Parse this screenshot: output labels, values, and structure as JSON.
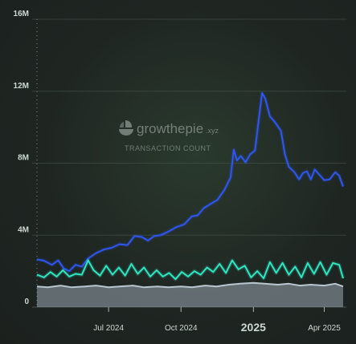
{
  "watermark": {
    "brand": "growthepie",
    "brand_suffix": ".xyz",
    "subtitle": "TRANSACTION COUNT"
  },
  "colors": {
    "background": "#1e2321",
    "grid": "#4a5a52",
    "series_blue": "#2f56f0",
    "series_teal": "#2ee6c0",
    "series_gray": "#b8c6d0",
    "gray_fill": "#9aa7b3"
  },
  "chart_data": {
    "type": "area",
    "title": "",
    "xlabel": "",
    "ylabel": "",
    "y_ticks": [
      "0",
      "4M",
      "8M",
      "12M",
      "16M"
    ],
    "y_tick_values": [
      0,
      4000000,
      8000000,
      12000000,
      16000000
    ],
    "ylim": [
      0,
      16000000
    ],
    "x_ticks": [
      {
        "label": "Jul 2024",
        "date": "2024-07-01",
        "emphasis": false
      },
      {
        "label": "Oct 2024",
        "date": "2024-10-01",
        "emphasis": false
      },
      {
        "label": "2025",
        "date": "2025-01-01",
        "emphasis": true
      },
      {
        "label": "Apr 2025",
        "date": "2025-04-01",
        "emphasis": false
      }
    ],
    "xlim": [
      "2024-04-01",
      "2025-04-25"
    ],
    "grid": true,
    "legend": "none",
    "series": [
      {
        "color": "#2f56f0",
        "style": "line",
        "points": [
          [
            "2024-04-01",
            2650000
          ],
          [
            "2024-04-10",
            2580000
          ],
          [
            "2024-04-20",
            2350000
          ],
          [
            "2024-04-28",
            2600000
          ],
          [
            "2024-05-05",
            2150000
          ],
          [
            "2024-05-12",
            2000000
          ],
          [
            "2024-05-20",
            2350000
          ],
          [
            "2024-05-28",
            2250000
          ],
          [
            "2024-06-05",
            2700000
          ],
          [
            "2024-06-15",
            3000000
          ],
          [
            "2024-06-25",
            3200000
          ],
          [
            "2024-07-05",
            3300000
          ],
          [
            "2024-07-15",
            3500000
          ],
          [
            "2024-07-25",
            3450000
          ],
          [
            "2024-08-03",
            3950000
          ],
          [
            "2024-08-12",
            3900000
          ],
          [
            "2024-08-20",
            3700000
          ],
          [
            "2024-08-28",
            3950000
          ],
          [
            "2024-09-05",
            4000000
          ],
          [
            "2024-09-15",
            4200000
          ],
          [
            "2024-09-25",
            4450000
          ],
          [
            "2024-10-05",
            4600000
          ],
          [
            "2024-10-15",
            5050000
          ],
          [
            "2024-10-22",
            5100000
          ],
          [
            "2024-10-30",
            5500000
          ],
          [
            "2024-11-08",
            5750000
          ],
          [
            "2024-11-16",
            5950000
          ],
          [
            "2024-11-25",
            6500000
          ],
          [
            "2024-12-03",
            7200000
          ],
          [
            "2024-12-07",
            8750000
          ],
          [
            "2024-12-11",
            8150000
          ],
          [
            "2024-12-16",
            8400000
          ],
          [
            "2024-12-22",
            8050000
          ],
          [
            "2024-12-28",
            8500000
          ],
          [
            "2025-01-03",
            8700000
          ],
          [
            "2025-01-08",
            10500000
          ],
          [
            "2025-01-12",
            11900000
          ],
          [
            "2025-01-16",
            11600000
          ],
          [
            "2025-01-22",
            10600000
          ],
          [
            "2025-01-28",
            10300000
          ],
          [
            "2025-02-05",
            9800000
          ],
          [
            "2025-02-10",
            8500000
          ],
          [
            "2025-02-15",
            7800000
          ],
          [
            "2025-02-22",
            7500000
          ],
          [
            "2025-02-28",
            7100000
          ],
          [
            "2025-03-05",
            7450000
          ],
          [
            "2025-03-10",
            7550000
          ],
          [
            "2025-03-15",
            7100000
          ],
          [
            "2025-03-20",
            7650000
          ],
          [
            "2025-03-26",
            7350000
          ],
          [
            "2025-04-01",
            7050000
          ],
          [
            "2025-04-08",
            7100000
          ],
          [
            "2025-04-15",
            7500000
          ],
          [
            "2025-04-20",
            7300000
          ],
          [
            "2025-04-25",
            6700000
          ]
        ]
      },
      {
        "color": "#2ee6c0",
        "style": "line",
        "points": [
          [
            "2024-04-01",
            1800000
          ],
          [
            "2024-04-10",
            1650000
          ],
          [
            "2024-04-18",
            1950000
          ],
          [
            "2024-04-26",
            1700000
          ],
          [
            "2024-05-04",
            2050000
          ],
          [
            "2024-05-12",
            1700000
          ],
          [
            "2024-05-20",
            1850000
          ],
          [
            "2024-05-28",
            1800000
          ],
          [
            "2024-06-05",
            2600000
          ],
          [
            "2024-06-12",
            2050000
          ],
          [
            "2024-06-20",
            1750000
          ],
          [
            "2024-06-28",
            2300000
          ],
          [
            "2024-07-06",
            1800000
          ],
          [
            "2024-07-14",
            2200000
          ],
          [
            "2024-07-22",
            1750000
          ],
          [
            "2024-07-30",
            2400000
          ],
          [
            "2024-08-07",
            1850000
          ],
          [
            "2024-08-15",
            2200000
          ],
          [
            "2024-08-23",
            1700000
          ],
          [
            "2024-08-31",
            2050000
          ],
          [
            "2024-09-08",
            1700000
          ],
          [
            "2024-09-16",
            1900000
          ],
          [
            "2024-09-24",
            1550000
          ],
          [
            "2024-10-02",
            1950000
          ],
          [
            "2024-10-10",
            1700000
          ],
          [
            "2024-10-18",
            2000000
          ],
          [
            "2024-10-26",
            1800000
          ],
          [
            "2024-11-03",
            2200000
          ],
          [
            "2024-11-11",
            1950000
          ],
          [
            "2024-11-19",
            2400000
          ],
          [
            "2024-11-27",
            1900000
          ],
          [
            "2024-12-05",
            2600000
          ],
          [
            "2024-12-13",
            2100000
          ],
          [
            "2024-12-21",
            2300000
          ],
          [
            "2024-12-29",
            1650000
          ],
          [
            "2025-01-06",
            2000000
          ],
          [
            "2025-01-14",
            1600000
          ],
          [
            "2025-01-22",
            2500000
          ],
          [
            "2025-01-30",
            1900000
          ],
          [
            "2025-02-07",
            2450000
          ],
          [
            "2025-02-15",
            1800000
          ],
          [
            "2025-02-23",
            2250000
          ],
          [
            "2025-03-03",
            1650000
          ],
          [
            "2025-03-11",
            2450000
          ],
          [
            "2025-03-19",
            1850000
          ],
          [
            "2025-03-27",
            2500000
          ],
          [
            "2025-04-04",
            1800000
          ],
          [
            "2025-04-12",
            2450000
          ],
          [
            "2025-04-20",
            2350000
          ],
          [
            "2025-04-25",
            1600000
          ]
        ]
      },
      {
        "color": "#b8c6d0",
        "style": "area",
        "points": [
          [
            "2024-04-01",
            1150000
          ],
          [
            "2024-04-15",
            1100000
          ],
          [
            "2024-05-01",
            1200000
          ],
          [
            "2024-05-15",
            1100000
          ],
          [
            "2024-06-01",
            1150000
          ],
          [
            "2024-06-15",
            1200000
          ],
          [
            "2024-07-01",
            1100000
          ],
          [
            "2024-07-15",
            1150000
          ],
          [
            "2024-08-01",
            1200000
          ],
          [
            "2024-08-15",
            1100000
          ],
          [
            "2024-09-01",
            1150000
          ],
          [
            "2024-09-15",
            1100000
          ],
          [
            "2024-10-01",
            1150000
          ],
          [
            "2024-10-15",
            1100000
          ],
          [
            "2024-11-01",
            1200000
          ],
          [
            "2024-11-15",
            1150000
          ],
          [
            "2024-12-01",
            1250000
          ],
          [
            "2024-12-15",
            1300000
          ],
          [
            "2025-01-01",
            1350000
          ],
          [
            "2025-01-15",
            1300000
          ],
          [
            "2025-02-01",
            1250000
          ],
          [
            "2025-02-15",
            1300000
          ],
          [
            "2025-03-01",
            1200000
          ],
          [
            "2025-03-15",
            1250000
          ],
          [
            "2025-04-01",
            1200000
          ],
          [
            "2025-04-15",
            1300000
          ],
          [
            "2025-04-25",
            1150000
          ]
        ]
      }
    ]
  }
}
